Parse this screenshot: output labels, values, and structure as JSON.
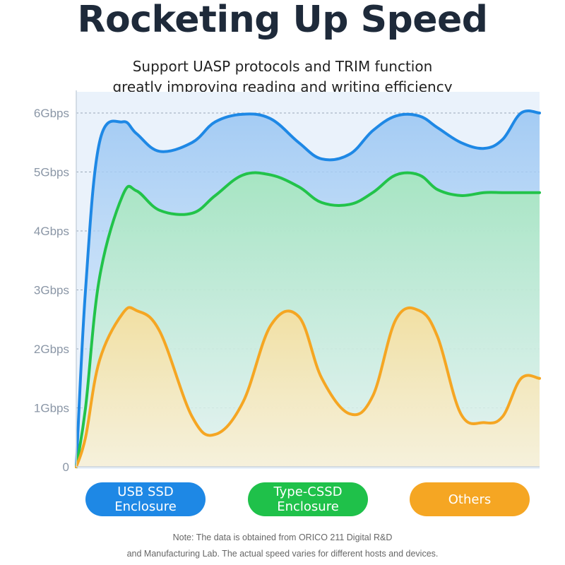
{
  "header": {
    "title": "Rocketing Up Speed",
    "subtitle_line1": "Support UASP protocols and TRIM function",
    "subtitle_line2": "greatly improving reading and writing efficiency"
  },
  "legend": {
    "usb_line1": "USB SSD",
    "usb_line2": "Enclosure",
    "typec_line1": "Type-CSSD",
    "typec_line2": "Enclosure",
    "others": "Others"
  },
  "note": {
    "line1": "Note: The data is obtained from ORICO 211 Digital R&D",
    "line2": "and Manufacturing Lab. The actual speed varies for different hosts and devices."
  },
  "colors": {
    "usb": "#1e88e5",
    "typec": "#22c34a",
    "others": "#f5a623",
    "grid": "#9aa8b8",
    "tick": "#8a96a6"
  },
  "chart_data": {
    "type": "area",
    "title": "",
    "xlabel": "",
    "ylabel": "",
    "ylim": [
      0,
      6
    ],
    "ytick_labels": [
      "0",
      "1Gbps",
      "2Gbps",
      "3Gbps",
      "4Gbps",
      "5Gbps",
      "6Gbps"
    ],
    "grid": true,
    "legend_position": "bottom",
    "x": [
      0,
      0.02,
      0.05,
      0.1,
      0.13,
      0.18,
      0.25,
      0.3,
      0.36,
      0.42,
      0.48,
      0.53,
      0.59,
      0.64,
      0.69,
      0.74,
      0.78,
      0.83,
      0.88,
      0.92,
      0.96,
      1.0
    ],
    "series": [
      {
        "name": "USB SSD Enclosure",
        "values": [
          0,
          3.0,
          5.5,
          5.85,
          5.65,
          5.35,
          5.5,
          5.85,
          5.98,
          5.9,
          5.5,
          5.22,
          5.3,
          5.7,
          5.95,
          5.95,
          5.75,
          5.5,
          5.4,
          5.55,
          6.0,
          6.0
        ]
      },
      {
        "name": "Type-CSSD Enclosure",
        "values": [
          0,
          1.0,
          3.2,
          4.6,
          4.68,
          4.35,
          4.3,
          4.6,
          4.95,
          4.95,
          4.75,
          4.48,
          4.45,
          4.65,
          4.95,
          4.95,
          4.7,
          4.6,
          4.65,
          4.65,
          4.65,
          4.65
        ]
      },
      {
        "name": "Others",
        "values": [
          0,
          0.5,
          1.8,
          2.6,
          2.65,
          2.3,
          0.85,
          0.55,
          1.1,
          2.4,
          2.55,
          1.5,
          0.9,
          1.2,
          2.5,
          2.65,
          2.2,
          0.9,
          0.75,
          0.85,
          1.5,
          1.5
        ]
      }
    ]
  }
}
